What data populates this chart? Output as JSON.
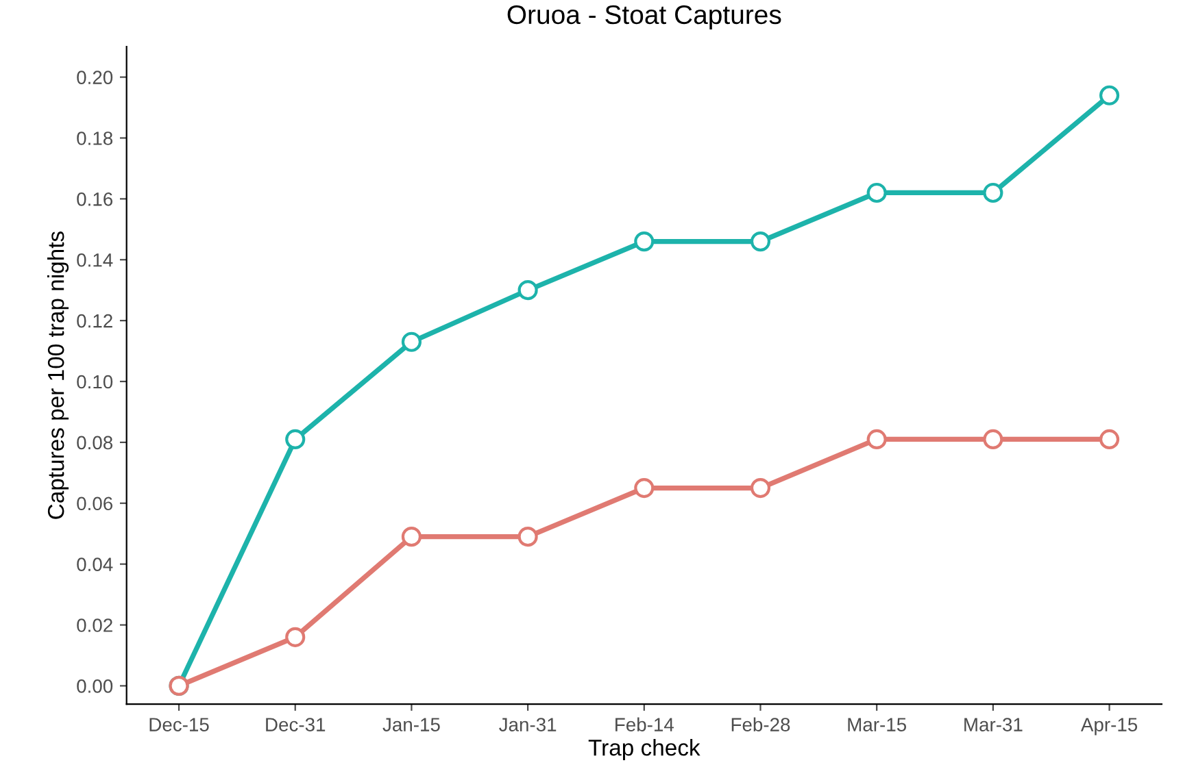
{
  "chart_data": {
    "type": "line",
    "title": "Oruoa - Stoat Captures",
    "xlabel": "Trap check",
    "ylabel": "Captures per 100 trap nights",
    "categories": [
      "Dec-15",
      "Dec-31",
      "Jan-15",
      "Jan-31",
      "Feb-14",
      "Feb-28",
      "Mar-15",
      "Mar-31",
      "Apr-15"
    ],
    "series": [
      {
        "color": "#1db3ab",
        "values": [
          0,
          0.081,
          0.113,
          0.13,
          0.146,
          0.146,
          0.162,
          0.162,
          0.194
        ]
      },
      {
        "color": "#e07a72",
        "values": [
          0,
          0.016,
          0.049,
          0.049,
          0.065,
          0.065,
          0.081,
          0.081,
          0.081
        ]
      }
    ],
    "ylim": [
      -0.006,
      0.21
    ],
    "yticks": [
      {
        "value": 0,
        "label": "0.00"
      },
      {
        "value": 0.02,
        "label": "0.02"
      },
      {
        "value": 0.04,
        "label": "0.04"
      },
      {
        "value": 0.06,
        "label": "0.06"
      },
      {
        "value": 0.08,
        "label": "0.08"
      },
      {
        "value": 0.1,
        "label": "0.10"
      },
      {
        "value": 0.12,
        "label": "0.12"
      },
      {
        "value": 0.14,
        "label": "0.14"
      },
      {
        "value": 0.16,
        "label": "0.16"
      },
      {
        "value": 0.18,
        "label": "0.18"
      },
      {
        "value": 0.2,
        "label": "0.20"
      }
    ],
    "grid": false,
    "marker": "circle",
    "line_style": "solid"
  }
}
